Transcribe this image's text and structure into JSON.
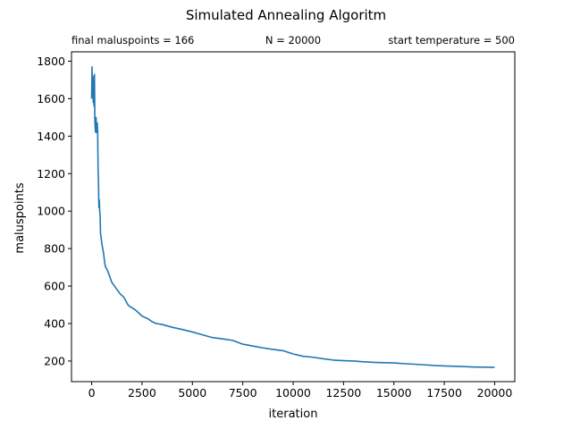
{
  "chart_data": {
    "type": "line",
    "title": "Simulated Annealing Algoritm",
    "annotations": {
      "left": "final maluspoints = 166",
      "center": "N = 20000",
      "right": "start temperature = 500"
    },
    "xlabel": "iteration",
    "ylabel": "maluspoints",
    "xlim": [
      -1000,
      21000
    ],
    "ylim": [
      90,
      1850
    ],
    "xticks": [
      0,
      2500,
      5000,
      7500,
      10000,
      12500,
      15000,
      17500,
      20000
    ],
    "yticks": [
      200,
      400,
      600,
      800,
      1000,
      1200,
      1400,
      1600,
      1800
    ],
    "line_color": "#1f77b4",
    "series": [
      {
        "x": [
          0,
          20,
          40,
          60,
          80,
          100,
          120,
          140,
          160,
          180,
          200,
          220,
          240,
          260,
          280,
          300,
          320,
          340,
          360,
          380,
          400,
          420,
          440,
          460,
          480,
          500,
          550,
          600,
          650,
          700,
          800,
          900,
          1000,
          1200,
          1400,
          1600,
          1800,
          1900,
          2000,
          2200,
          2500,
          2800,
          3000,
          3200,
          3500,
          4000,
          4500,
          5000,
          5500,
          6000,
          6500,
          7000,
          7500,
          8000,
          8500,
          9000,
          9500,
          10000,
          10500,
          11000,
          11500,
          12000,
          12500,
          13000,
          13500,
          14000,
          14500,
          15000,
          15500,
          16000,
          16500,
          17000,
          17500,
          18000,
          18500,
          19000,
          19500,
          20000
        ],
        "y": [
          1600,
          1770,
          1640,
          1720,
          1580,
          1700,
          1560,
          1730,
          1480,
          1440,
          1420,
          1500,
          1440,
          1420,
          1470,
          1410,
          1220,
          1150,
          1020,
          1060,
          1000,
          980,
          880,
          870,
          850,
          830,
          800,
          770,
          720,
          700,
          680,
          650,
          620,
          590,
          560,
          540,
          500,
          490,
          485,
          470,
          440,
          425,
          410,
          400,
          395,
          380,
          368,
          355,
          340,
          325,
          318,
          310,
          290,
          280,
          270,
          262,
          255,
          238,
          225,
          220,
          212,
          205,
          202,
          200,
          196,
          193,
          191,
          190,
          186,
          183,
          180,
          176,
          174,
          172,
          170,
          168,
          167,
          166
        ]
      }
    ]
  }
}
